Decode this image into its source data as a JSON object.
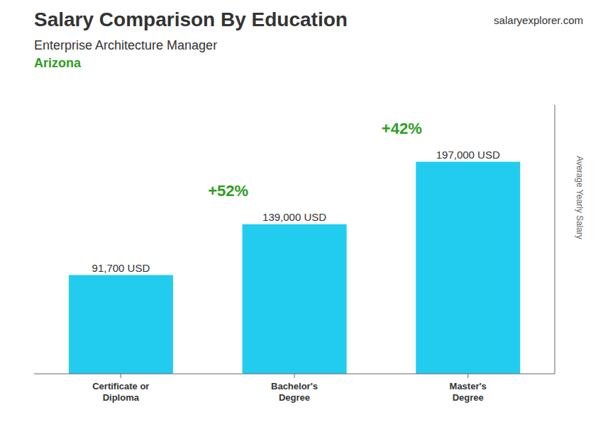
{
  "chart_data": {
    "type": "bar",
    "title": "Salary Comparison By Education",
    "subtitle": "Enterprise Architecture Manager",
    "location": "Arizona",
    "watermark": "salaryexplorer.com",
    "ylabel": "Average Yearly Salary",
    "categories": [
      "Certificate or\nDiploma",
      "Bachelor's\nDegree",
      "Master's\nDegree"
    ],
    "values": [
      91700,
      139000,
      197000
    ],
    "value_labels": [
      "91,700 USD",
      "139,000 USD",
      "197,000 USD"
    ],
    "annotations": [
      "+52%",
      "+42%"
    ],
    "data_labels": true,
    "color": "#22CCEE",
    "ylim": [
      0,
      250000
    ],
    "tick_labels": "x",
    "grid": false
  }
}
